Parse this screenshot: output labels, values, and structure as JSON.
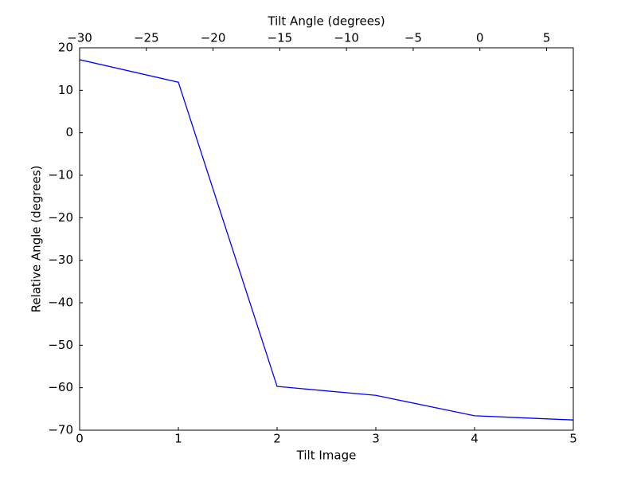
{
  "chart_data": {
    "type": "line",
    "xlabel": "Tilt Image",
    "x2label": "Tilt Angle (degrees)",
    "ylabel": "Relative Angle (degrees)",
    "x": [
      0,
      1,
      2,
      3,
      4,
      5
    ],
    "values": [
      17.2,
      11.9,
      -59.7,
      -61.8,
      -66.6,
      -67.6
    ],
    "color": "#0000ff",
    "xlim": [
      0,
      5
    ],
    "xticks": [
      0,
      1,
      2,
      3,
      4,
      5
    ],
    "x2lim": [
      -30,
      7
    ],
    "x2ticks": [
      {
        "value": -30,
        "label": "−30"
      },
      {
        "value": -25,
        "label": "−25"
      },
      {
        "value": -20,
        "label": "−20"
      },
      {
        "value": -15,
        "label": "−15"
      },
      {
        "value": -10,
        "label": "−10"
      },
      {
        "value": -5,
        "label": "−5"
      },
      0,
      5
    ],
    "ylim": [
      -70,
      20
    ],
    "yticks": [
      20,
      10,
      0,
      {
        "value": -10,
        "label": "−10"
      },
      {
        "value": -20,
        "label": "−20"
      },
      {
        "value": -30,
        "label": "−30"
      },
      {
        "value": -40,
        "label": "−40"
      },
      {
        "value": -50,
        "label": "−50"
      },
      {
        "value": -60,
        "label": "−60"
      },
      {
        "value": -70,
        "label": "−70"
      }
    ],
    "grid": false
  }
}
